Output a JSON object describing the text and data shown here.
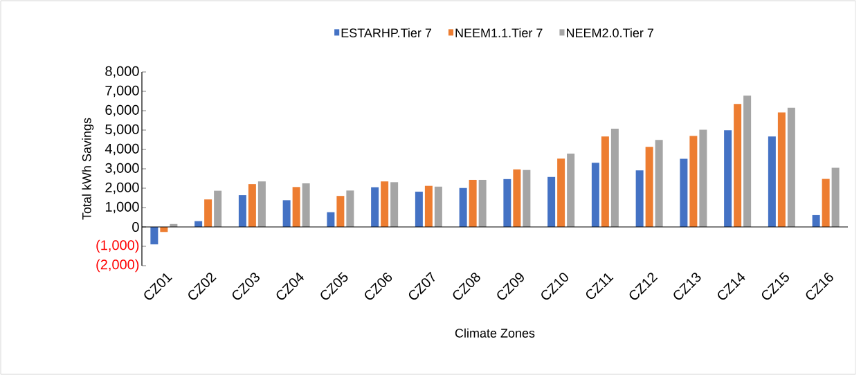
{
  "chart_data": {
    "type": "bar",
    "xlabel": "Climate Zones",
    "ylabel": "Total kWh Savings",
    "categories": [
      "CZ01",
      "CZ02",
      "CZ03",
      "CZ04",
      "CZ05",
      "CZ06",
      "CZ07",
      "CZ08",
      "CZ09",
      "CZ10",
      "CZ11",
      "CZ12",
      "CZ13",
      "CZ14",
      "CZ15",
      "CZ16"
    ],
    "series": [
      {
        "name": "ESTARHP.Tier 7",
        "color": "#4472c4",
        "values": [
          -900,
          300,
          1640,
          1380,
          760,
          2050,
          1820,
          2010,
          2470,
          2580,
          3310,
          2920,
          3520,
          4990,
          4670,
          610
        ]
      },
      {
        "name": "NEEM1.1.Tier 7",
        "color": "#ed7d31",
        "values": [
          -260,
          1420,
          2210,
          2060,
          1600,
          2350,
          2120,
          2430,
          2970,
          3530,
          4670,
          4130,
          4700,
          6350,
          5910,
          2480
        ]
      },
      {
        "name": "NEEM2.0.Tier 7",
        "color": "#a5a5a5",
        "values": [
          150,
          1870,
          2350,
          2250,
          1880,
          2310,
          2080,
          2430,
          2940,
          3790,
          5070,
          4490,
          5020,
          6780,
          6150,
          3050
        ]
      }
    ],
    "ylim": [
      -2000,
      8000
    ],
    "yticks": [
      {
        "value": -2000,
        "label": "(2,000)"
      },
      {
        "value": -1000,
        "label": "(1,000)"
      },
      {
        "value": 0,
        "label": "0"
      },
      {
        "value": 1000,
        "label": "1,000"
      },
      {
        "value": 2000,
        "label": "2,000"
      },
      {
        "value": 3000,
        "label": "3,000"
      },
      {
        "value": 4000,
        "label": "4,000"
      },
      {
        "value": 5000,
        "label": "5,000"
      },
      {
        "value": 6000,
        "label": "6,000"
      },
      {
        "value": 7000,
        "label": "7,000"
      },
      {
        "value": 8000,
        "label": "8,000"
      }
    ],
    "legend": "top"
  }
}
